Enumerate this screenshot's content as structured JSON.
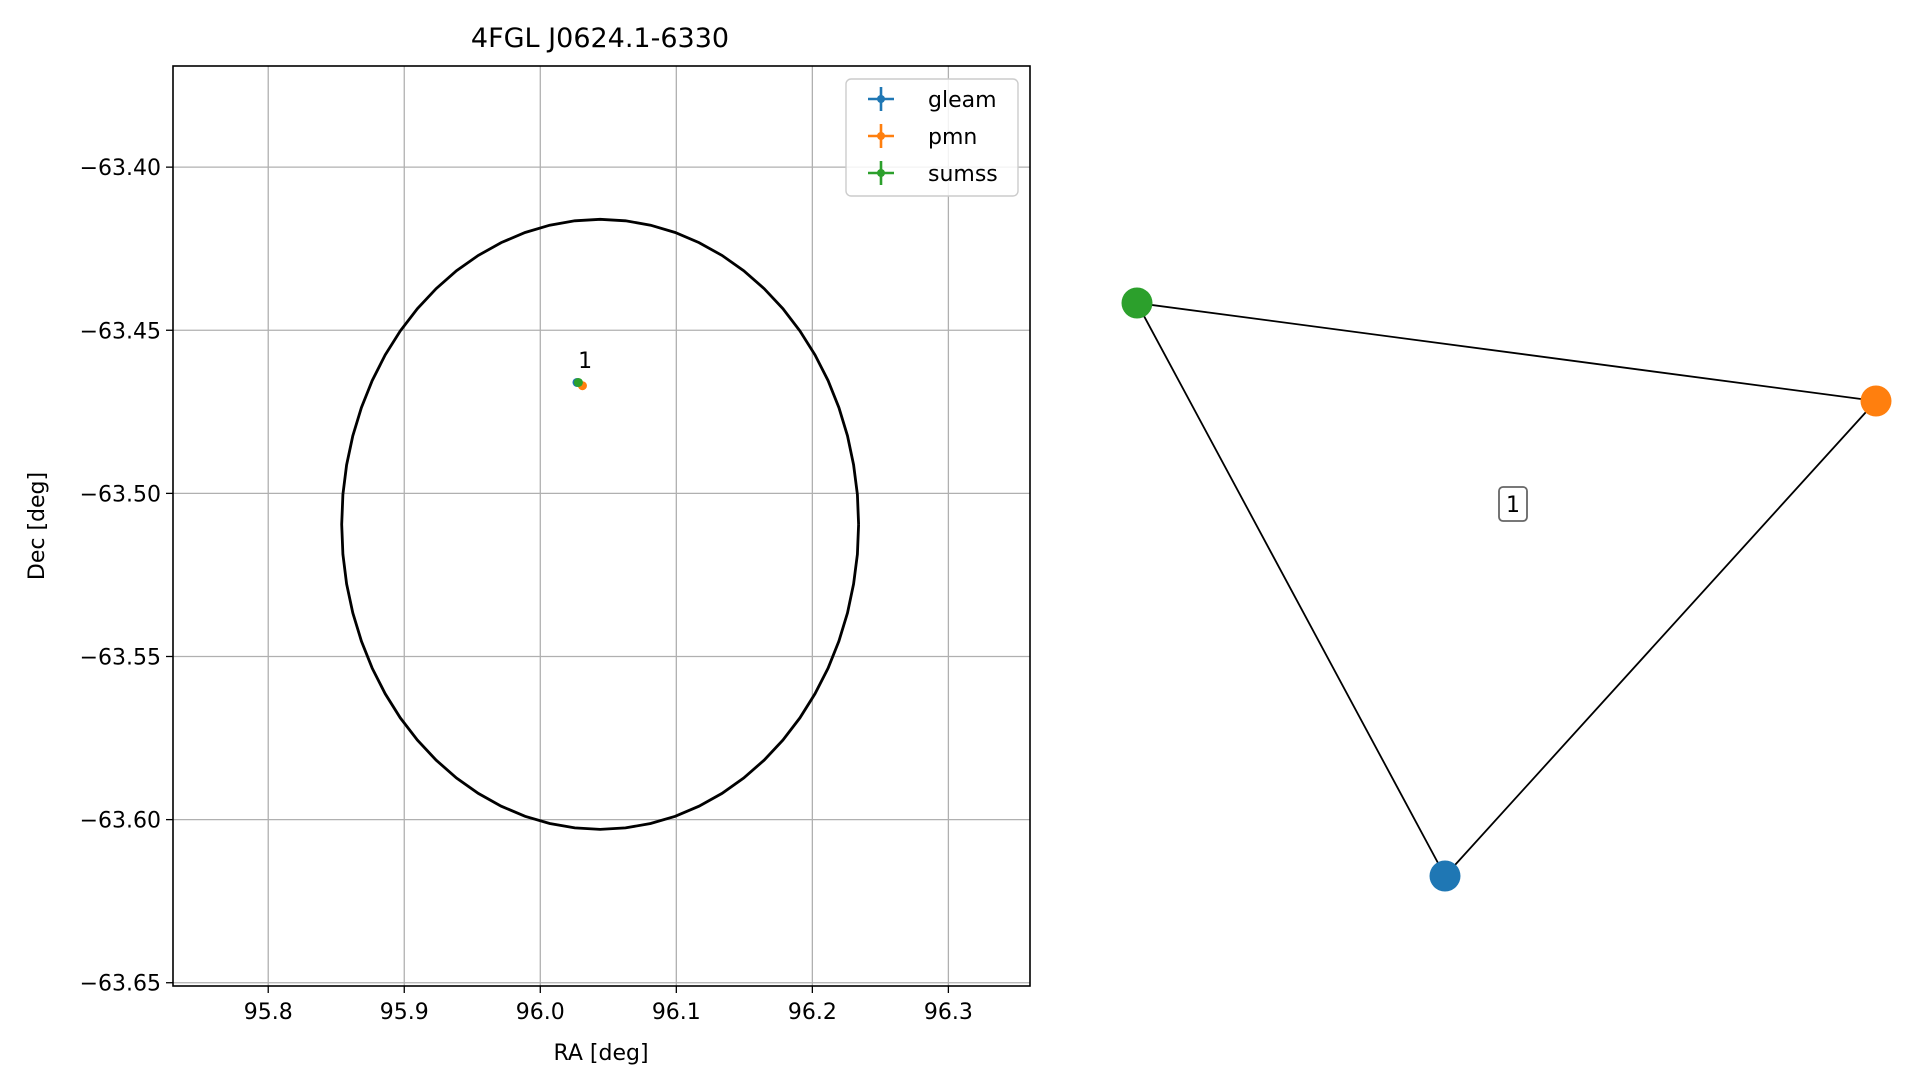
{
  "chart_data": [
    {
      "type": "scatter",
      "title": "4FGL J0624.1-6330",
      "xlabel": "RA [deg]",
      "ylabel": "Dec [deg]",
      "xlim": [
        95.73,
        96.36
      ],
      "ylim": [
        -63.651,
        -63.369
      ],
      "xticks": [
        95.8,
        95.9,
        96.0,
        96.1,
        96.2,
        96.3
      ],
      "xtick_labels": [
        "95.8",
        "95.9",
        "96.0",
        "96.1",
        "96.2",
        "96.3"
      ],
      "yticks": [
        -63.4,
        -63.45,
        -63.5,
        -63.55,
        -63.6,
        -63.65
      ],
      "ytick_labels": [
        "−63.40",
        "−63.45",
        "−63.50",
        "−63.55",
        "−63.60",
        "−63.65"
      ],
      "grid": true,
      "legend_position": "top-right",
      "series": [
        {
          "name": "gleam",
          "color": "#1f77b4",
          "x": [
            96.027
          ],
          "y": [
            -63.466
          ]
        },
        {
          "name": "pmn",
          "color": "#ff7f0e",
          "x": [
            96.031
          ],
          "y": [
            -63.467
          ]
        },
        {
          "name": "sumss",
          "color": "#2ca02c",
          "x": [
            96.028
          ],
          "y": [
            -63.466
          ]
        }
      ],
      "ellipse": {
        "center_ra": 96.044,
        "center_dec": -63.5095,
        "semi_axis_ra": 0.19,
        "semi_axis_dec": 0.0935,
        "color": "#000000"
      },
      "annotations": [
        {
          "text": "1",
          "x": 96.033,
          "y": -63.4615
        }
      ]
    },
    {
      "type": "graph",
      "nodes": [
        {
          "name": "gleam",
          "color": "#1f77b4"
        },
        {
          "name": "pmn",
          "color": "#ff7f0e"
        },
        {
          "name": "sumss",
          "color": "#2ca02c"
        }
      ],
      "edges": [
        [
          "gleam",
          "pmn"
        ],
        [
          "pmn",
          "sumss"
        ],
        [
          "sumss",
          "gleam"
        ]
      ],
      "label": "1"
    }
  ]
}
